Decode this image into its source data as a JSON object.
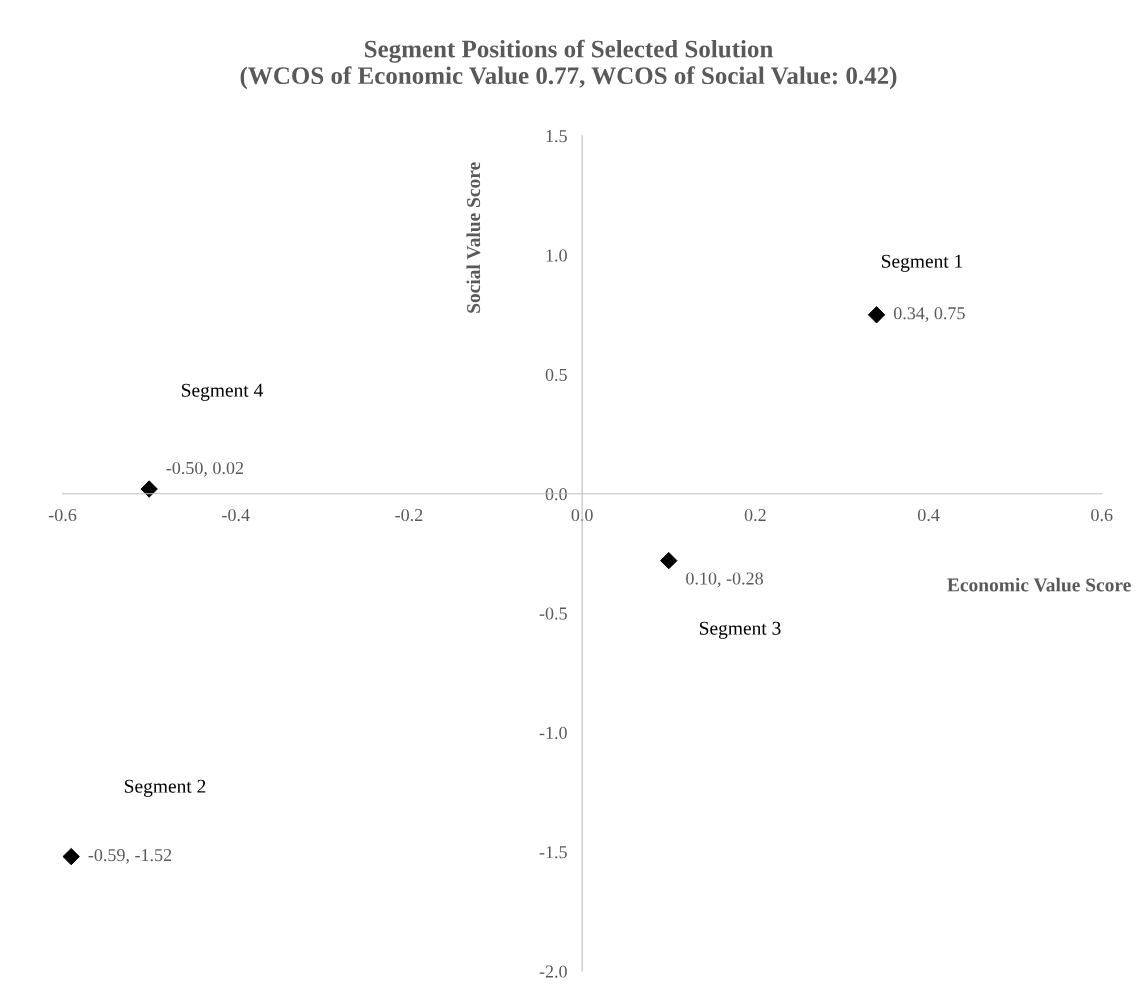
{
  "chart_data": {
    "type": "scatter",
    "title": "Segment Positions of Selected Solution\n(WCOS of Economic Value 0.77, WCOS of Social Value: 0.42)",
    "xlabel": "Economic Value Score",
    "ylabel": "Social Value Score",
    "series": [
      {
        "color": "#000000",
        "x": [
          0.34,
          -0.59,
          0.1,
          -0.5
        ],
        "values": [
          0.75,
          -1.52,
          -0.28,
          0.02
        ],
        "value_labels": [
          "0.34, 0.75",
          "-0.59, -1.52",
          "0.10, -0.28",
          "-0.50, 0.02"
        ]
      }
    ],
    "marker": "diamond",
    "grid": false,
    "xlim": [
      -0.6,
      0.6
    ],
    "ylim": [
      -2.0,
      1.5
    ],
    "xticks": [
      {
        "value": -0.6,
        "label": "-0.6"
      },
      {
        "value": -0.4,
        "label": "-0.4"
      },
      {
        "value": -0.2,
        "label": "-0.2"
      },
      {
        "value": 0.0,
        "label": "0.0"
      },
      {
        "value": 0.2,
        "label": "0.2"
      },
      {
        "value": 0.4,
        "label": "0.4"
      },
      {
        "value": 0.6,
        "label": "0.6"
      }
    ],
    "yticks": [
      {
        "value": -2.0,
        "label": "-2.0"
      },
      {
        "value": -1.5,
        "label": "-1.5"
      },
      {
        "value": -1.0,
        "label": "-1.0"
      },
      {
        "value": -0.5,
        "label": "-0.5"
      },
      {
        "value": 0.0,
        "label": "0.0"
      },
      {
        "value": 0.5,
        "label": "0.5"
      },
      {
        "value": 1.0,
        "label": "1.0"
      },
      {
        "value": 1.5,
        "label": "1.5"
      }
    ],
    "annotations": [
      "Segment 1",
      "Segment 4",
      "Segment 3",
      "Segment 2"
    ]
  }
}
